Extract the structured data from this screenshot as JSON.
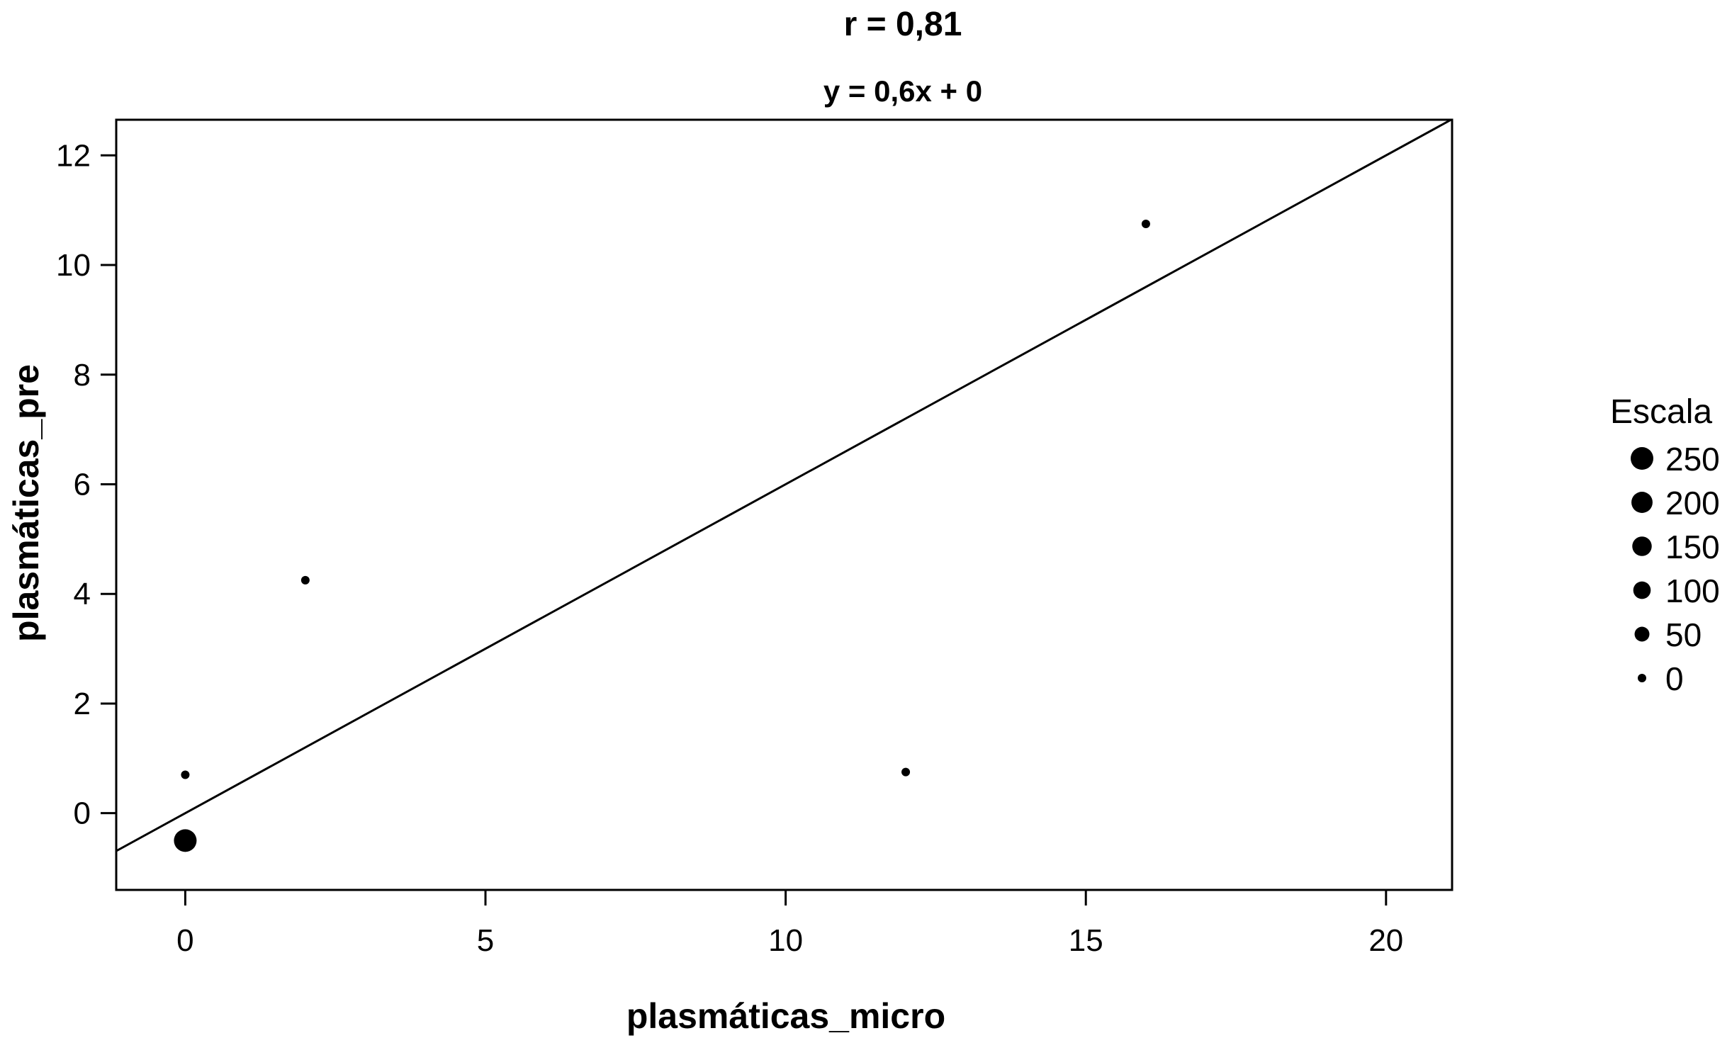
{
  "chart_data": {
    "type": "scatter",
    "title": "r = 0,81",
    "subtitle": "y = 0,6x + 0",
    "xlabel": "plasmáticas_micro",
    "ylabel": "plasmáticas_pre",
    "xlim": [
      -1.15,
      21.1
    ],
    "ylim": [
      -1.4,
      12.65
    ],
    "xticks": [
      0,
      5,
      10,
      15,
      20
    ],
    "xtick_labels": [
      "0",
      "5",
      "10",
      "15",
      "20"
    ],
    "yticks": [
      0,
      2,
      4,
      6,
      8,
      10,
      12
    ],
    "ytick_labels": [
      "0",
      "2",
      "4",
      "6",
      "8",
      "10",
      "12"
    ],
    "grid": false,
    "line": {
      "slope": 0.6,
      "intercept": 0
    },
    "points": [
      {
        "x": 0.0,
        "y": -0.5,
        "size": 250
      },
      {
        "x": 0.0,
        "y": 0.7,
        "size": 0
      },
      {
        "x": 2.0,
        "y": 4.25,
        "size": 0
      },
      {
        "x": 12.0,
        "y": 0.75,
        "size": 0
      },
      {
        "x": 16.0,
        "y": 10.75,
        "size": 0
      }
    ],
    "legend": {
      "title": "Escala",
      "placement": "right",
      "entries": [
        {
          "label": "250",
          "size": 250
        },
        {
          "label": "200",
          "size": 200
        },
        {
          "label": "150",
          "size": 150
        },
        {
          "label": "100",
          "size": 100
        },
        {
          "label": "50",
          "size": 50
        },
        {
          "label": "0",
          "size": 0
        }
      ]
    },
    "colors": {
      "points": "#000000",
      "line": "#000000",
      "frame": "#000000"
    }
  }
}
